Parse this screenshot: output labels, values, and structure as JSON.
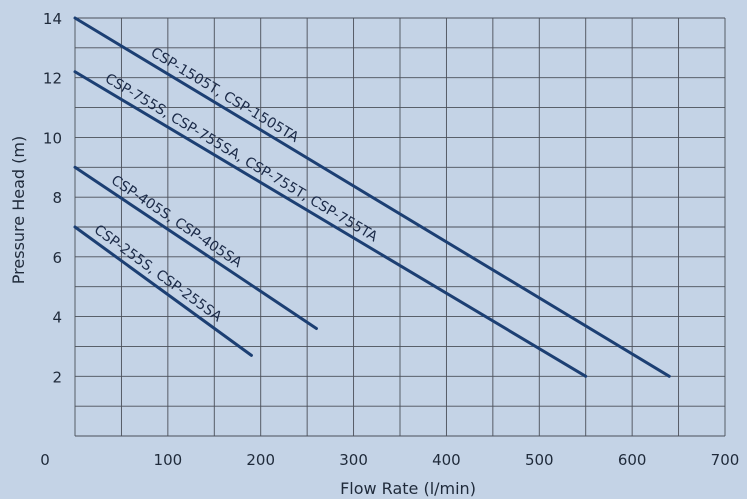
{
  "chart_data": {
    "type": "line",
    "title": "",
    "xlabel": "Flow Rate (l/min)",
    "ylabel": "Pressure Head (m)",
    "xlim": [
      0,
      700
    ],
    "ylim": [
      0,
      14
    ],
    "x_ticks": [
      0,
      100,
      200,
      300,
      400,
      500,
      600,
      700
    ],
    "y_ticks": [
      0,
      2,
      4,
      6,
      8,
      10,
      12,
      14
    ],
    "grid": true,
    "legend": "none (labels placed along each line)",
    "line_color": "#1c3f73",
    "background_color": "#c4d3e6",
    "series": [
      {
        "name": "CSP-1505T, CSP-1505TA",
        "x": [
          0,
          640
        ],
        "y": [
          14.0,
          2.0
        ]
      },
      {
        "name": "CSP-755S, CSP-755SA, CSP-755T, CSP-755TA",
        "x": [
          0,
          550
        ],
        "y": [
          12.2,
          2.0
        ]
      },
      {
        "name": "CSP-405S, CSP-405SA",
        "x": [
          0,
          260
        ],
        "y": [
          9.0,
          3.6
        ]
      },
      {
        "name": "CSP-255S, CSP-255SA",
        "x": [
          0,
          190
        ],
        "y": [
          7.0,
          2.7
        ]
      }
    ]
  }
}
